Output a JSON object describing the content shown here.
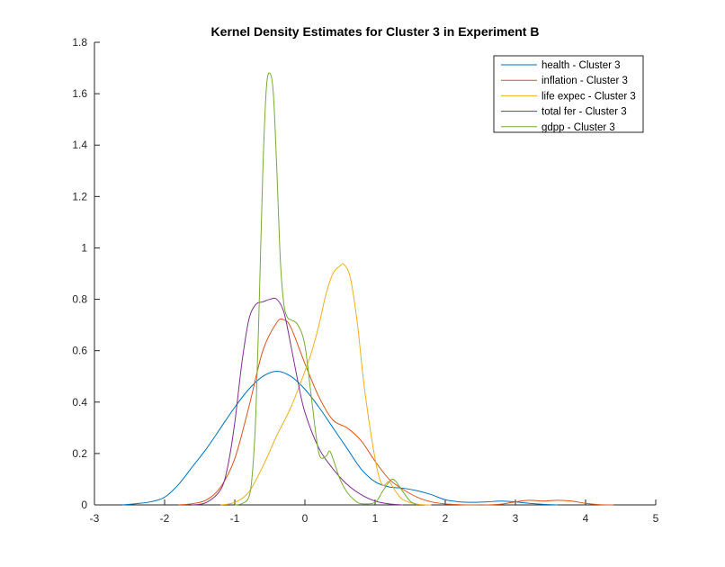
{
  "chart_data": {
    "type": "line",
    "title": "Kernel Density Estimates for Cluster 3 in Experiment B",
    "xlabel": "",
    "ylabel": "",
    "xlim": [
      -3,
      5
    ],
    "ylim": [
      0,
      1.8
    ],
    "xticks": [
      -3,
      -2,
      -1,
      0,
      1,
      2,
      3,
      4,
      5
    ],
    "xtick_labels": [
      "-3",
      "-2",
      "-1",
      "0",
      "1",
      "2",
      "3",
      "4",
      "5"
    ],
    "yticks": [
      0,
      0.2,
      0.4,
      0.6,
      0.8,
      1,
      1.2,
      1.4,
      1.6,
      1.8
    ],
    "ytick_labels": [
      "0",
      "0.2",
      "0.4",
      "0.6",
      "0.8",
      "1",
      "1.2",
      "1.4",
      "1.6",
      "1.8"
    ],
    "grid": false,
    "legend_position": "top-right",
    "series": [
      {
        "name": "health - Cluster 3",
        "color": "#0072BD",
        "x": [
          -2.6,
          -2.4,
          -2.2,
          -2.0,
          -1.8,
          -1.6,
          -1.4,
          -1.2,
          -1.0,
          -0.8,
          -0.6,
          -0.4,
          -0.2,
          0.0,
          0.2,
          0.4,
          0.6,
          0.8,
          1.0,
          1.2,
          1.4,
          1.6,
          1.8,
          2.0,
          2.2,
          2.4,
          2.6,
          2.8,
          3.0,
          3.2,
          3.4,
          3.6
        ],
        "y": [
          0.0,
          0.005,
          0.012,
          0.03,
          0.08,
          0.15,
          0.22,
          0.3,
          0.38,
          0.45,
          0.5,
          0.52,
          0.5,
          0.45,
          0.38,
          0.3,
          0.22,
          0.14,
          0.09,
          0.07,
          0.065,
          0.055,
          0.04,
          0.02,
          0.012,
          0.01,
          0.012,
          0.015,
          0.012,
          0.006,
          0.002,
          0.0
        ]
      },
      {
        "name": "inflation - Cluster 3",
        "color": "#D95319",
        "x": [
          -1.8,
          -1.6,
          -1.4,
          -1.2,
          -1.0,
          -0.8,
          -0.6,
          -0.4,
          -0.3,
          -0.2,
          0.0,
          0.2,
          0.4,
          0.6,
          0.8,
          1.0,
          1.2,
          1.4,
          1.6,
          1.8,
          2.0,
          2.2,
          2.4,
          2.6,
          2.8,
          3.0,
          3.2,
          3.4,
          3.6,
          3.8,
          4.0,
          4.2,
          4.4
        ],
        "y": [
          0.0,
          0.005,
          0.02,
          0.07,
          0.18,
          0.38,
          0.6,
          0.71,
          0.72,
          0.69,
          0.55,
          0.42,
          0.33,
          0.3,
          0.25,
          0.17,
          0.1,
          0.06,
          0.03,
          0.012,
          0.004,
          0.001,
          0.0,
          0.0,
          0.003,
          0.012,
          0.018,
          0.015,
          0.018,
          0.015,
          0.006,
          0.001,
          0.0
        ]
      },
      {
        "name": "life expec - Cluster 3",
        "color": "#EDB120",
        "x": [
          -1.2,
          -1.0,
          -0.8,
          -0.6,
          -0.4,
          -0.2,
          0.0,
          0.1,
          0.2,
          0.3,
          0.4,
          0.5,
          0.56,
          0.65,
          0.75,
          0.85,
          1.0,
          1.1,
          1.2,
          1.3,
          1.4,
          1.6,
          1.8
        ],
        "y": [
          0.0,
          0.01,
          0.05,
          0.15,
          0.27,
          0.38,
          0.52,
          0.6,
          0.7,
          0.82,
          0.9,
          0.93,
          0.935,
          0.88,
          0.7,
          0.45,
          0.18,
          0.08,
          0.09,
          0.05,
          0.02,
          0.003,
          0.0
        ]
      },
      {
        "name": "total fer - Cluster 3",
        "color": "#7E2F8E",
        "x": [
          -1.6,
          -1.4,
          -1.2,
          -1.1,
          -1.0,
          -0.9,
          -0.8,
          -0.7,
          -0.6,
          -0.5,
          -0.4,
          -0.3,
          -0.2,
          -0.1,
          0.0,
          0.2,
          0.4,
          0.6,
          0.8,
          1.0,
          1.2,
          1.4
        ],
        "y": [
          0.0,
          0.01,
          0.06,
          0.15,
          0.32,
          0.55,
          0.72,
          0.78,
          0.79,
          0.8,
          0.8,
          0.75,
          0.62,
          0.48,
          0.36,
          0.22,
          0.14,
          0.08,
          0.04,
          0.015,
          0.004,
          0.0
        ]
      },
      {
        "name": "gdpp - Cluster 3",
        "color": "#77AC30",
        "x": [
          -1.0,
          -0.9,
          -0.8,
          -0.75,
          -0.7,
          -0.65,
          -0.6,
          -0.55,
          -0.5,
          -0.45,
          -0.4,
          -0.35,
          -0.3,
          -0.25,
          -0.2,
          -0.1,
          0.0,
          0.1,
          0.2,
          0.3,
          0.35,
          0.4,
          0.5,
          0.6,
          0.7,
          0.8,
          1.0,
          1.1,
          1.2,
          1.25,
          1.3,
          1.4,
          1.5,
          1.6
        ],
        "y": [
          0.0,
          0.005,
          0.03,
          0.12,
          0.35,
          0.8,
          1.3,
          1.62,
          1.68,
          1.6,
          1.3,
          0.95,
          0.78,
          0.73,
          0.72,
          0.7,
          0.62,
          0.4,
          0.2,
          0.19,
          0.21,
          0.18,
          0.1,
          0.05,
          0.02,
          0.005,
          0.01,
          0.05,
          0.09,
          0.1,
          0.09,
          0.05,
          0.015,
          0.0
        ]
      }
    ]
  }
}
